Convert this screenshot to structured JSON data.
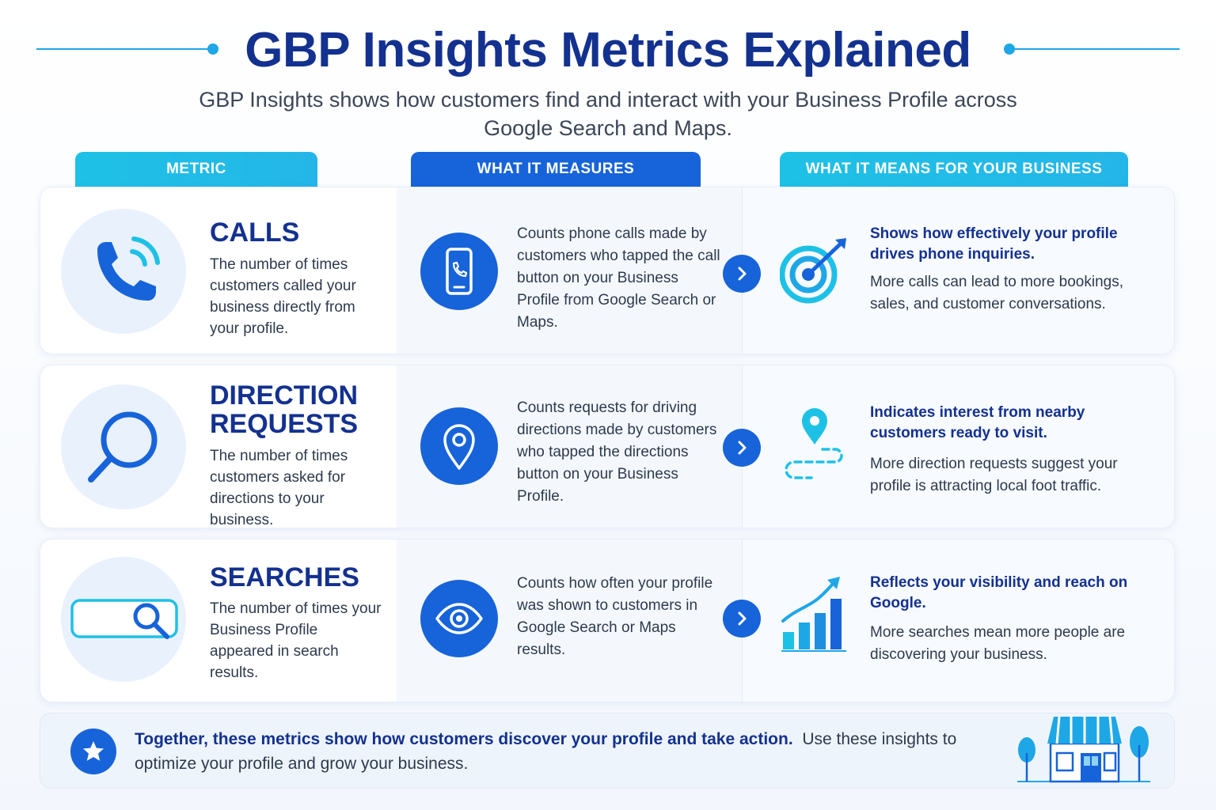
{
  "header": {
    "title": "GBP Insights Metrics Explained",
    "subtitle": "GBP Insights shows how customers find and interact with your Business Profile across Google Search and Maps."
  },
  "columns": {
    "metric": "METRIC",
    "measures": "WHAT IT MEASURES",
    "meaning": "WHAT IT MEANS FOR YOUR BUSINESS"
  },
  "rows": [
    {
      "icon": "phone-call-icon",
      "title": "CALLS",
      "description": "The number of times customers called your business directly from your profile.",
      "measure_icon": "mobile-phone-icon",
      "measures": "Counts phone calls made by customers who tapped the call button on your Business Profile from Google Search or Maps.",
      "meaning_icon": "target-icon",
      "meaning_head": "Shows how effectively your profile drives phone inquiries.",
      "meaning_text": "More calls can lead to more bookings, sales, and customer conversations."
    },
    {
      "icon": "magnifier-icon",
      "title": "DIRECTION REQUESTS",
      "description": "The number of times customers asked for directions to your business.",
      "measure_icon": "map-pin-icon",
      "measures": "Counts requests for driving directions made by customers who tapped the directions button on your Business Profile.",
      "meaning_icon": "route-pin-icon",
      "meaning_head": "Indicates interest from nearby customers ready to visit.",
      "meaning_text": "More direction requests suggest your profile is attracting local foot traffic."
    },
    {
      "icon": "search-bar-icon",
      "title": "SEARCHES",
      "description": "The number of times your Business Profile appeared in search results.",
      "measure_icon": "eye-icon",
      "measures": "Counts how often your profile was shown to customers in Google Search or Maps results.",
      "meaning_icon": "growth-chart-icon",
      "meaning_head": "Reflects your visibility and reach on Google.",
      "meaning_text": "More searches mean more people are discovering your business."
    }
  ],
  "footer": {
    "icon": "star-icon",
    "bold": "Together, these metrics show how customers discover your profile and take action.",
    "text": "Use these insights to optimize your profile and grow your business.",
    "illustration": "storefront-icon"
  },
  "colors": {
    "title": "#13318f",
    "accent": "#1763d9",
    "cyan": "#1ec1e6",
    "line": "#1ea7e6"
  }
}
